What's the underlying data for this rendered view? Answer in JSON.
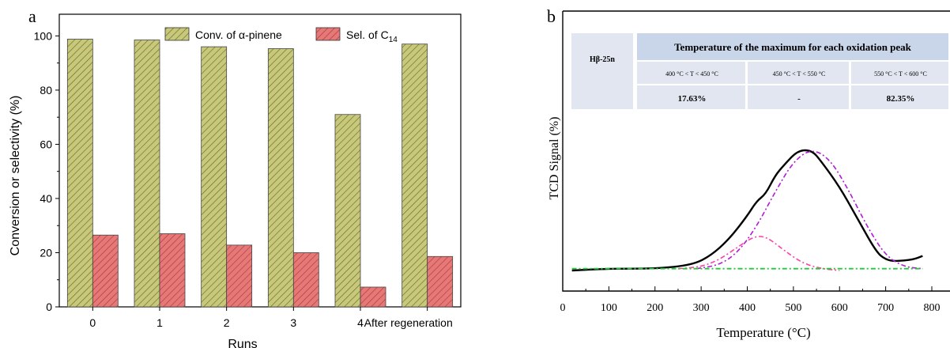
{
  "colors": {
    "conv_fill": "#c8c87a",
    "conv_hatch": "#6b6b2e",
    "sel_fill": "#e77878",
    "sel_hatch": "#a83a3a",
    "curve_total": "#000000",
    "curve_peak1": "#ff3fa6",
    "curve_peak2": "#b11bd6",
    "curve_baseline": "#22c83a",
    "table_header_bg": "#c9d6ea",
    "table_row_bg": "#e1e6f0"
  },
  "panel_a": {
    "label": "a",
    "chart_data": {
      "type": "bar",
      "categories": [
        "0",
        "1",
        "2",
        "3",
        "4",
        "After regeneration"
      ],
      "series": [
        {
          "name": "Conv. of α-pinene",
          "values": [
            98.8,
            98.5,
            96.0,
            95.3,
            71.0,
            97.0
          ]
        },
        {
          "name": "Sel. of C14",
          "values": [
            26.5,
            27.0,
            22.8,
            20.0,
            7.3,
            18.6
          ]
        }
      ],
      "xlabel": "Runs",
      "ylabel": "Conversion or selectivity (%)",
      "ylim": [
        0,
        108
      ],
      "yticks": [
        "0",
        "20",
        "40",
        "60",
        "80",
        "100"
      ],
      "legend": [
        {
          "text": "Conv. of α-pinene",
          "sub": ""
        },
        {
          "text": "Sel. of C",
          "sub": "14"
        }
      ],
      "legend_position": "top",
      "grid": false
    }
  },
  "panel_b": {
    "label": "b",
    "chart_data": {
      "type": "line",
      "xlabel": "Temperature (°C)",
      "ylabel": "TCD Signal (%)",
      "xlim": [
        0,
        800
      ],
      "xticks": [
        "0",
        "100",
        "200",
        "300",
        "400",
        "500",
        "600",
        "700",
        "800"
      ],
      "yticks_shown": false,
      "series": [
        {
          "name": "",
          "style": "solid",
          "x": [
            20,
            100,
            200,
            280,
            320,
            360,
            400,
            420,
            440,
            460,
            480,
            510,
            540,
            560,
            600,
            640,
            680,
            700,
            720,
            760,
            780
          ],
          "y": [
            0.0,
            0.01,
            0.01,
            0.03,
            0.08,
            0.17,
            0.3,
            0.38,
            0.42,
            0.52,
            0.58,
            0.66,
            0.66,
            0.6,
            0.46,
            0.28,
            0.1,
            0.06,
            0.05,
            0.06,
            0.08
          ]
        },
        {
          "name": "",
          "style": "dash-dot",
          "x": [
            250,
            300,
            340,
            380,
            410,
            430,
            450,
            480,
            520,
            560,
            600
          ],
          "y": [
            0.01,
            0.02,
            0.06,
            0.13,
            0.18,
            0.19,
            0.17,
            0.11,
            0.04,
            0.01,
            0.0
          ]
        },
        {
          "name": "",
          "style": "dash-dot",
          "x": [
            290,
            340,
            380,
            420,
            460,
            500,
            540,
            580,
            620,
            660,
            700,
            740,
            780
          ],
          "y": [
            0.01,
            0.03,
            0.1,
            0.24,
            0.43,
            0.6,
            0.67,
            0.61,
            0.44,
            0.24,
            0.08,
            0.02,
            0.01
          ]
        },
        {
          "name": "",
          "style": "dash-dot",
          "x": [
            20,
            780
          ],
          "y": [
            0.01,
            0.01
          ]
        }
      ]
    },
    "table": {
      "title": "Temperature of the maximum for each oxidation peak",
      "sample": "Hβ-25n",
      "columns": [
        "400 °C < T < 450 °C",
        "450 °C < T < 550 °C",
        "550 °C < T < 600 °C"
      ],
      "values": [
        "17.63%",
        "-",
        "82.35%"
      ]
    }
  }
}
